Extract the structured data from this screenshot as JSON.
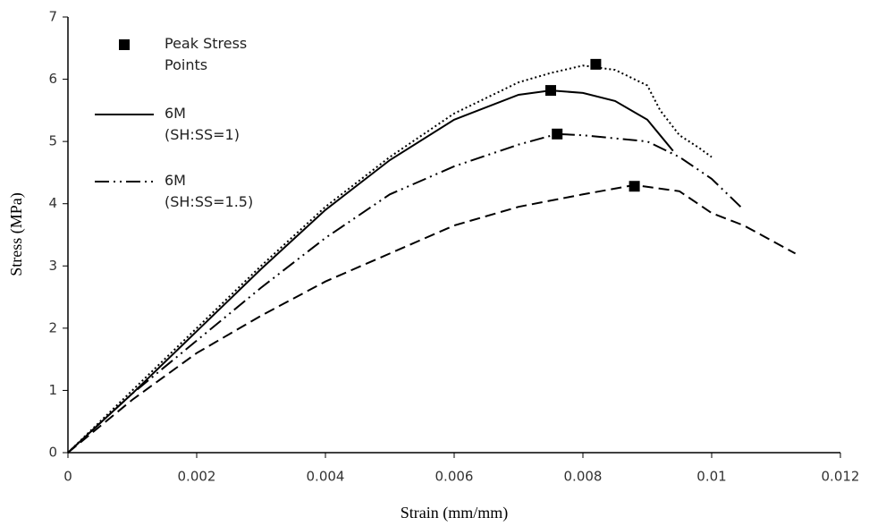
{
  "chart_data": {
    "type": "line",
    "x_label": "Strain (mm/mm)",
    "y_label": "Stress (MPa)",
    "xlim": [
      0,
      0.012
    ],
    "xticks": [
      0,
      0.002,
      0.004,
      0.006,
      0.008,
      0.01,
      0.012
    ],
    "ylim": [
      0,
      7
    ],
    "yticks": [
      0,
      1,
      2,
      3,
      4,
      5,
      6,
      7
    ],
    "series": [
      {
        "name": "Peak Stress Points",
        "color": "#000000",
        "marker": "square",
        "x": [
          0.0082,
          0.0075,
          0.0076,
          0.0088
        ],
        "values": [
          6.24,
          5.82,
          5.12,
          4.28
        ]
      },
      {
        "name": "6M (SH:SS=1)",
        "color": "#000000",
        "dash": "solid",
        "x": [
          0,
          0.001,
          0.002,
          0.003,
          0.004,
          0.005,
          0.006,
          0.007,
          0.0075,
          0.008,
          0.0085,
          0.009,
          0.0092,
          0.0094
        ],
        "values": [
          0,
          0.95,
          1.95,
          2.95,
          3.9,
          4.7,
          5.35,
          5.75,
          5.82,
          5.78,
          5.65,
          5.35,
          5.1,
          4.85
        ]
      },
      {
        "name": "6M (SH:SS=1.5)",
        "color": "#000000",
        "dash": "dash-dot-dot",
        "x": [
          0,
          0.001,
          0.002,
          0.003,
          0.004,
          0.005,
          0.006,
          0.007,
          0.0076,
          0.008,
          0.009,
          0.0095,
          0.01,
          0.0105
        ],
        "values": [
          0,
          0.95,
          1.8,
          2.65,
          3.45,
          4.15,
          4.6,
          4.95,
          5.12,
          5.1,
          5.0,
          4.75,
          4.4,
          3.9
        ]
      },
      {
        "color": "#000000",
        "dash": "dotted",
        "x": [
          0,
          0.001,
          0.002,
          0.003,
          0.004,
          0.005,
          0.006,
          0.007,
          0.0075,
          0.008,
          0.0085,
          0.009,
          0.0092,
          0.0095,
          0.0098,
          0.01
        ],
        "values": [
          0,
          1.0,
          2.0,
          3.0,
          3.95,
          4.75,
          5.45,
          5.95,
          6.1,
          6.22,
          6.15,
          5.9,
          5.5,
          5.1,
          4.9,
          4.75
        ]
      },
      {
        "color": "#000000",
        "dash": "dashed",
        "x": [
          0,
          0.001,
          0.002,
          0.003,
          0.004,
          0.005,
          0.006,
          0.007,
          0.008,
          0.0088,
          0.0095,
          0.01,
          0.0105,
          0.0113
        ],
        "values": [
          0,
          0.85,
          1.6,
          2.2,
          2.75,
          3.2,
          3.65,
          3.95,
          4.15,
          4.3,
          4.2,
          3.85,
          3.65,
          3.2
        ]
      }
    ]
  }
}
